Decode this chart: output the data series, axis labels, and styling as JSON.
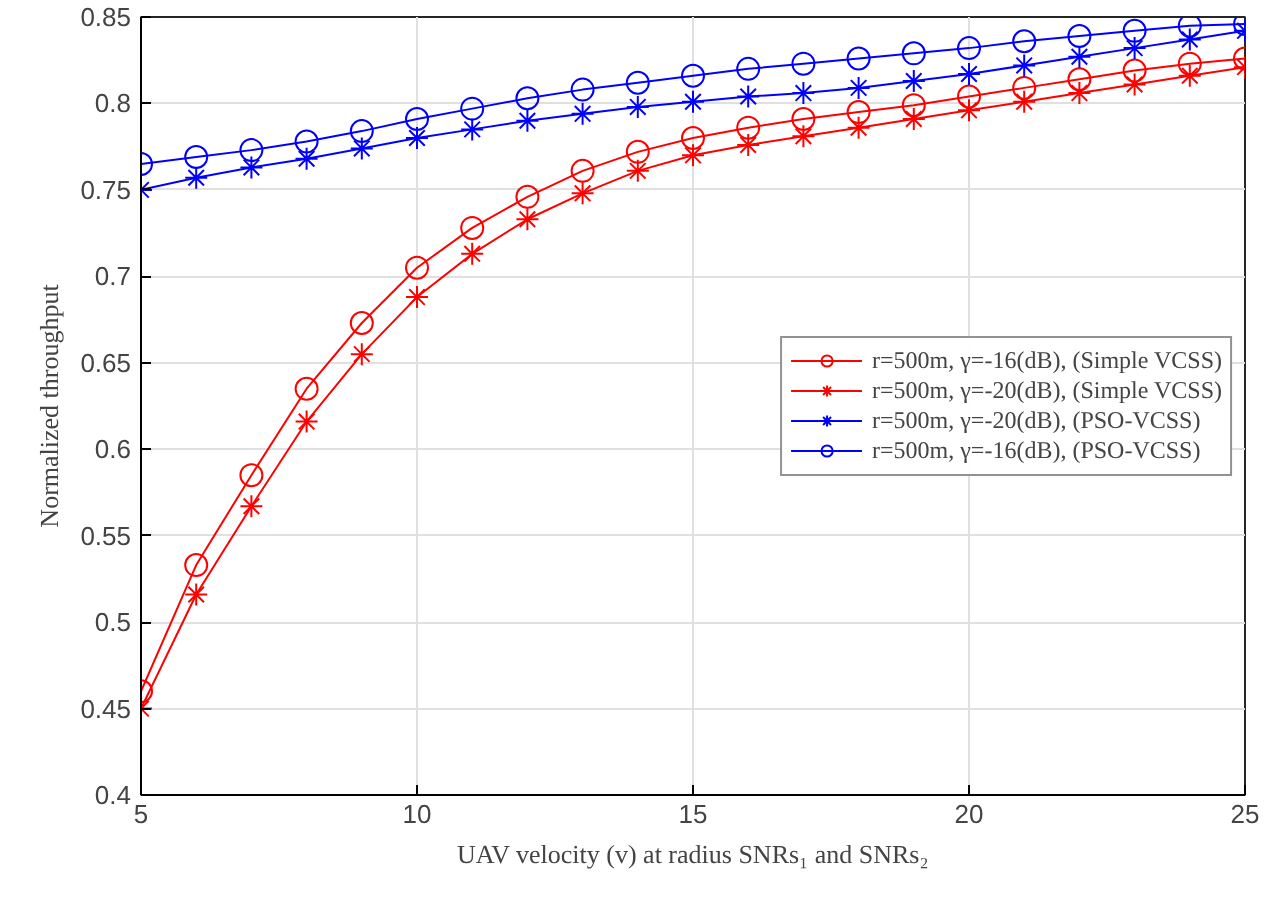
{
  "chart_data": {
    "type": "line",
    "xlabel": "UAV velocity (v) at radius SNRs₁ and SNRs₂",
    "ylabel": "Normalized throughput",
    "x": [
      5,
      6,
      7,
      8,
      9,
      10,
      11,
      12,
      13,
      14,
      15,
      16,
      17,
      18,
      19,
      20,
      21,
      22,
      23,
      24,
      25
    ],
    "xlim": [
      5,
      25
    ],
    "xticks": [
      5,
      10,
      15,
      20,
      25
    ],
    "ylim": [
      0.4,
      0.85
    ],
    "yticks": [
      0.4,
      0.45,
      0.5,
      0.55,
      0.6,
      0.65,
      0.7,
      0.75,
      0.8,
      0.85
    ],
    "grid": true,
    "legend": "right",
    "series": [
      {
        "name": "r=500m, γ=-16(dB), (Simple VCSS)",
        "color": "#ff0000",
        "marker": "circle",
        "values": [
          0.46,
          0.533,
          0.585,
          0.635,
          0.673,
          0.705,
          0.728,
          0.746,
          0.761,
          0.772,
          0.78,
          0.786,
          0.791,
          0.795,
          0.799,
          0.804,
          0.809,
          0.814,
          0.819,
          0.823,
          0.826
        ]
      },
      {
        "name": "r=500m, γ=-20(dB), (Simple VCSS)",
        "color": "#ff0000",
        "marker": "cross",
        "values": [
          0.45,
          0.516,
          0.567,
          0.616,
          0.655,
          0.688,
          0.713,
          0.733,
          0.748,
          0.761,
          0.77,
          0.776,
          0.781,
          0.786,
          0.791,
          0.796,
          0.801,
          0.806,
          0.811,
          0.816,
          0.821
        ]
      },
      {
        "name": "r=500m, γ=-20(dB), (PSO-VCSS)",
        "color": "#0000ff",
        "marker": "cross",
        "values": [
          0.75,
          0.757,
          0.763,
          0.768,
          0.774,
          0.78,
          0.785,
          0.79,
          0.794,
          0.798,
          0.801,
          0.804,
          0.806,
          0.809,
          0.813,
          0.817,
          0.822,
          0.827,
          0.832,
          0.837,
          0.842
        ]
      },
      {
        "name": "r=500m, γ=-16(dB), (PSO-VCSS)",
        "color": "#0000ff",
        "marker": "circle",
        "values": [
          0.765,
          0.769,
          0.773,
          0.778,
          0.784,
          0.791,
          0.797,
          0.803,
          0.808,
          0.812,
          0.816,
          0.82,
          0.823,
          0.826,
          0.829,
          0.832,
          0.836,
          0.839,
          0.842,
          0.845,
          0.846
        ]
      }
    ]
  }
}
